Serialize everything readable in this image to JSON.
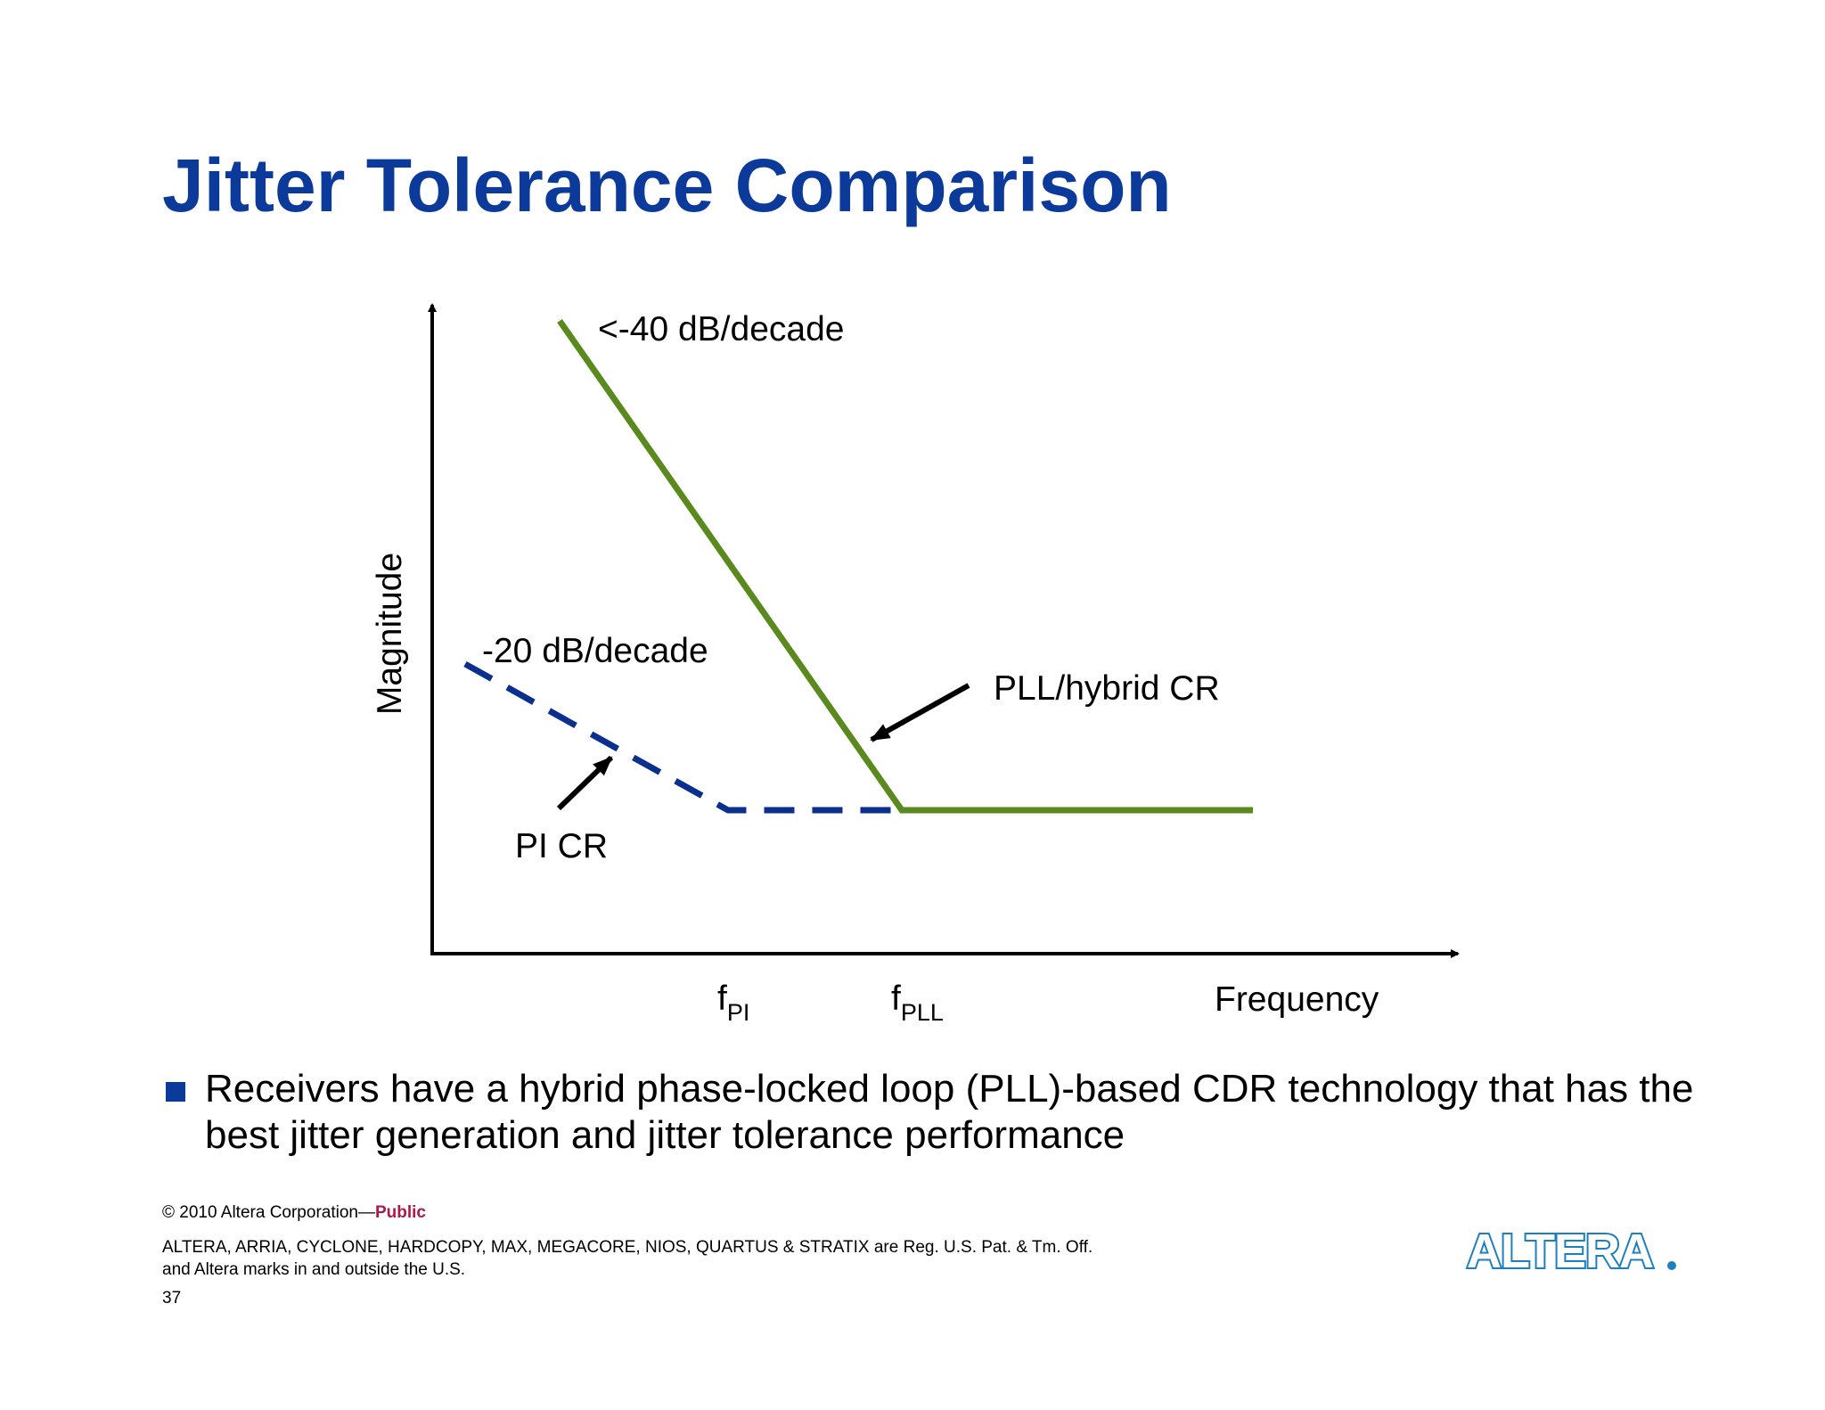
{
  "slide": {
    "title": "Jitter Tolerance Comparison"
  },
  "diagram": {
    "y_axis_label": "Magnitude",
    "x_axis_label": "Frequency",
    "f_pi_main": "f",
    "f_pi_sub": "PI",
    "f_pll_main": "f",
    "f_pll_sub": "PLL",
    "pll_slope_label": "<-40 dB/decade",
    "pi_slope_label": "-20 dB/decade",
    "pll_curve_label": "PLL/hybrid CR",
    "pi_curve_label": "PI CR",
    "colors": {
      "pll_curve": "#5a8a1e",
      "pi_curve": "#0b2f8f",
      "title": "#0b3a9b"
    }
  },
  "bullet": {
    "text": "Receivers have a hybrid phase-locked loop (PLL)-based CDR technology that has the best jitter generation and jitter tolerance performance"
  },
  "footer": {
    "copyright": "© 2010 Altera Corporation—",
    "public_label": "Public",
    "trademark_line1": "ALTERA, ARRIA, CYCLONE, HARDCOPY, MAX, MEGACORE, NIOS, QUARTUS & STRATIX are Reg. U.S. Pat. & Tm. Off.",
    "trademark_line2": "and Altera marks in and outside the U.S.",
    "page_number": "37",
    "logo_text": "ALTERA"
  }
}
